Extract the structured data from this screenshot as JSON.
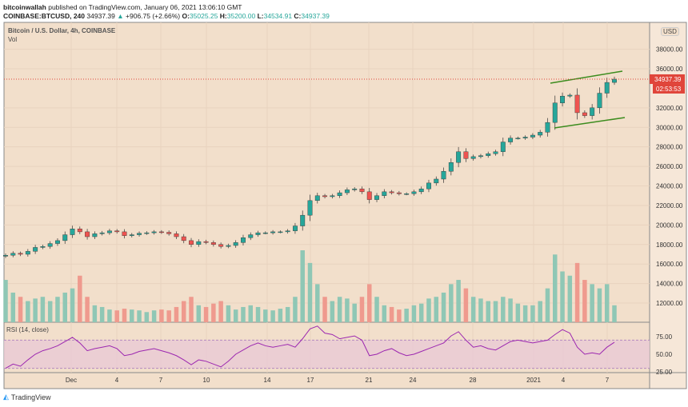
{
  "header": {
    "author": "bitcoinwallah",
    "published": "published on TradingView.com, January 06, 2021 13:06:10 GMT",
    "symbol": "COINBASE:BTCUSD, 240",
    "last": "34937.39",
    "change": "+906.75 (+2.66%)",
    "o_label": "O:",
    "o": "35025.25",
    "h_label": "H:",
    "h": "35200.00",
    "l_label": "L:",
    "l": "34534.91",
    "c_label": "C:",
    "c": "34937.39"
  },
  "pane": {
    "title": "Bitcoin / U.S. Dollar, 4h, COINBASE",
    "vol": "Vol",
    "rsi": "RSI (14, close)"
  },
  "colors": {
    "up": "#26a69a",
    "down": "#ef5350",
    "bg": "#f2dfcb",
    "rsi": "#9c27b0",
    "channel": "#3c8c1e",
    "price_label": "#e0453a"
  },
  "footer": {
    "brand": "TradingView"
  },
  "chart_data": {
    "type": "candlestick",
    "price_axis": {
      "currency": "USD",
      "ticks": [
        "12000.00",
        "14000.00",
        "16000.00",
        "18000.00",
        "20000.00",
        "22000.00",
        "24000.00",
        "26000.00",
        "28000.00",
        "30000.00",
        "32000.00",
        "36000.00",
        "38000.00"
      ],
      "last_price": "34937.39",
      "countdown": "02:53:53"
    },
    "rsi_axis": {
      "ticks": [
        "25.00",
        "50.00",
        "75.00"
      ],
      "band": [
        30,
        70
      ]
    },
    "x_ticks": [
      "Dec",
      "4",
      "7",
      "10",
      "14",
      "17",
      "21",
      "24",
      "28",
      "2021",
      "4",
      "7"
    ],
    "closes": [
      16900,
      17100,
      17000,
      17300,
      17700,
      17800,
      18100,
      18400,
      19000,
      19600,
      19300,
      18800,
      19100,
      19200,
      19400,
      19300,
      18900,
      19000,
      19150,
      19200,
      19300,
      19250,
      19100,
      18800,
      18400,
      18000,
      18300,
      18200,
      18000,
      17800,
      17900,
      18200,
      18700,
      19000,
      19200,
      19200,
      19300,
      19300,
      19400,
      19900,
      21000,
      22500,
      23000,
      22900,
      23000,
      23300,
      23600,
      23700,
      23400,
      22600,
      23000,
      23400,
      23300,
      23200,
      23200,
      23400,
      23700,
      24300,
      24700,
      25500,
      26400,
      27500,
      26800,
      27000,
      27100,
      27300,
      27500,
      28500,
      28900,
      28900,
      29000,
      29200,
      29500,
      30500,
      32500,
      33200,
      33300,
      31500,
      31200,
      32000,
      33500,
      34600,
      34937
    ],
    "volumes": [
      50,
      35,
      30,
      25,
      28,
      30,
      25,
      30,
      35,
      40,
      55,
      30,
      20,
      18,
      15,
      14,
      16,
      15,
      14,
      12,
      14,
      15,
      14,
      18,
      25,
      30,
      20,
      18,
      22,
      25,
      20,
      15,
      18,
      20,
      18,
      15,
      14,
      16,
      18,
      30,
      85,
      70,
      45,
      30,
      25,
      30,
      28,
      22,
      30,
      45,
      30,
      20,
      18,
      15,
      16,
      20,
      22,
      28,
      30,
      35,
      45,
      50,
      40,
      30,
      28,
      25,
      25,
      30,
      28,
      22,
      20,
      20,
      25,
      40,
      80,
      60,
      55,
      70,
      50,
      45,
      40,
      45,
      20
    ],
    "rsi": [
      30,
      36,
      33,
      42,
      50,
      55,
      58,
      62,
      68,
      74,
      66,
      55,
      58,
      60,
      62,
      58,
      48,
      50,
      54,
      56,
      58,
      55,
      52,
      48,
      42,
      35,
      42,
      40,
      36,
      32,
      40,
      50,
      56,
      62,
      66,
      62,
      60,
      62,
      64,
      60,
      72,
      86,
      90,
      80,
      78,
      72,
      74,
      76,
      70,
      48,
      50,
      55,
      58,
      52,
      48,
      50,
      54,
      58,
      62,
      66,
      76,
      82,
      70,
      60,
      62,
      58,
      56,
      62,
      68,
      70,
      68,
      66,
      68,
      70,
      78,
      85,
      80,
      60,
      50,
      52,
      50,
      60,
      67
    ]
  }
}
